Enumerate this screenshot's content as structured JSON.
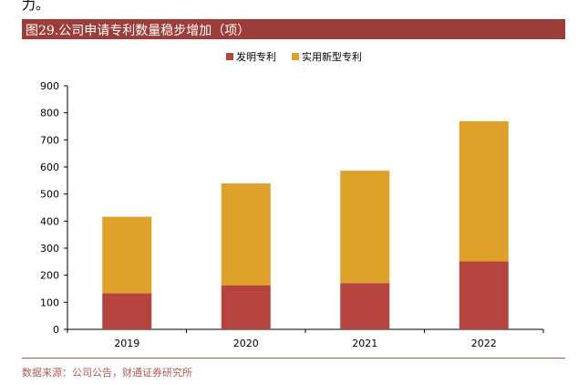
{
  "page": {
    "top_fragment": "力。",
    "figure_title": "图29.公司申请专利数量稳步增加（项）",
    "source": "数据来源：公司公告，财通证券研究所"
  },
  "colors": {
    "title_bar": "#9c3d3a",
    "invention": "#b5443f",
    "utility": "#dea129"
  },
  "chart_data": {
    "type": "bar",
    "stacked": true,
    "categories": [
      "2019",
      "2020",
      "2021",
      "2022"
    ],
    "series": [
      {
        "name": "发明专利",
        "values": [
          133,
          163,
          171,
          251
        ]
      },
      {
        "name": "实用新型专利",
        "values": [
          283,
          376,
          415,
          518
        ]
      }
    ],
    "title": "",
    "xlabel": "",
    "ylabel": "",
    "ylim": [
      0,
      900
    ],
    "yticks": [
      0,
      100,
      200,
      300,
      400,
      500,
      600,
      700,
      800,
      900
    ],
    "grid": false,
    "legend_position": "top-center"
  }
}
